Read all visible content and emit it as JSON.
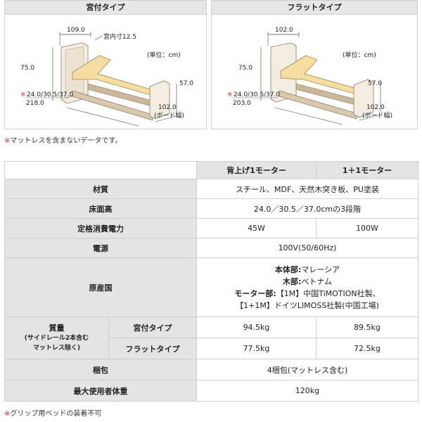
{
  "diagrams": [
    {
      "title": "宮付タイプ",
      "dims": {
        "top_width": "109.0",
        "inner": "宮内寸12.5",
        "unit": "(単位：cm)",
        "height": "75.0",
        "end_height": "57.0",
        "floor": "24.0/30.5/37.0",
        "length": "218.0",
        "board_width": "102.0",
        "board_label": "(ボード幅)"
      }
    },
    {
      "title": "フラットタイプ",
      "dims": {
        "top_width": "102.0",
        "unit": "(単位：cm)",
        "height": "75.0",
        "end_height": "57.0",
        "floor": "24.0/30.5/37.0",
        "length": "203.0",
        "board_width": "102.0",
        "board_label": "(ボード幅)"
      }
    }
  ],
  "note_top": {
    "mark": "※",
    "text": "マットレスを含まないデータです。"
  },
  "table": {
    "col_headers": [
      "背上げ1モーター",
      "1＋1モーター"
    ],
    "material": {
      "label": "材質",
      "value": "スチール、MDF、天然木突き板、PU塗装"
    },
    "floor_height": {
      "label": "床面高",
      "value": "24.0／30.5／37.0cmの3段階"
    },
    "power": {
      "label": "定格消費電力",
      "v1": "45W",
      "v2": "100W"
    },
    "source": {
      "label": "電源",
      "value": "100V(50/60Hz)"
    },
    "origin": {
      "label": "原産国",
      "lines": [
        {
          "bold": "本体部:",
          "text": "マレーシア"
        },
        {
          "bold": "木部:",
          "text": "ベトナム"
        },
        {
          "bold": "モーター部:",
          "text": "【1M】中国TiMOTION社製、"
        },
        {
          "bold": "",
          "text": "【1+1M】ドイツLIMOSS社製(中国工場)"
        }
      ]
    },
    "weight": {
      "label": "質量",
      "sub1": "(サイドレール2本含む",
      "sub2": "マットレス除く)",
      "rows": [
        {
          "type": "宮付タイプ",
          "v1": "94.5kg",
          "v2": "89.5kg"
        },
        {
          "type": "フラットタイプ",
          "v1": "77.5kg",
          "v2": "72.5kg"
        }
      ]
    },
    "packing": {
      "label": "梱包",
      "value": "4梱包(マットレス含む)"
    },
    "max_weight": {
      "label": "最大使用者体重",
      "value": "120kg"
    }
  },
  "note_bottom": {
    "mark": "※",
    "text": "グリップ用ベッドの装着不可"
  }
}
